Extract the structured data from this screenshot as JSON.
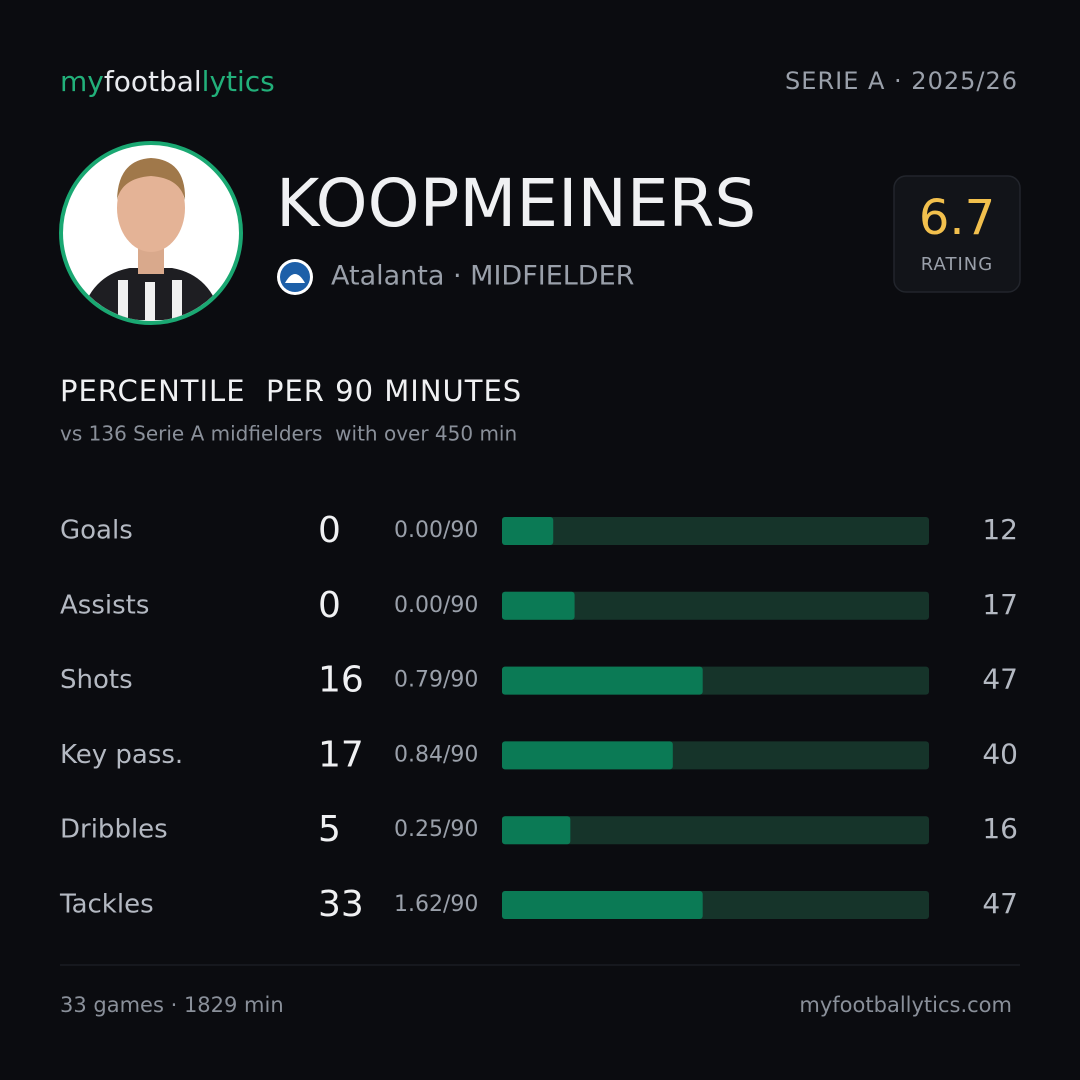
{
  "header": {
    "brand": [
      "my",
      "footbal",
      "lytics"
    ],
    "league": "SERIE A · 2025/26"
  },
  "player": {
    "name": "KOOPMEINERS",
    "club_role": "Atalanta · MIDFIELDER",
    "rating": "6.7",
    "rating_label": "RATING"
  },
  "stats": {
    "title": "PERCENTILE  PER 90 MINUTES",
    "subtitle": "vs 136 Serie A midfielders  with over 450 min",
    "percentile_range": [
      0,
      100
    ],
    "bar_color": "#0b7a55",
    "track_color": "#16342a",
    "rows": [
      {
        "label": "Goals",
        "count": 0,
        "per90": "0.00/90",
        "percentile": 12
      },
      {
        "label": "Assists",
        "count": 0,
        "per90": "0.00/90",
        "percentile": 17
      },
      {
        "label": "Shots",
        "count": 16,
        "per90": "0.79/90",
        "percentile": 47
      },
      {
        "label": "Key pass.",
        "count": 17,
        "per90": "0.84/90",
        "percentile": 40
      },
      {
        "label": "Dribbles",
        "count": 5,
        "per90": "0.25/90",
        "percentile": 16
      },
      {
        "label": "Tackles",
        "count": 33,
        "per90": "1.62/90",
        "percentile": 47
      }
    ]
  },
  "footer": {
    "summary": "33 games · 1829 min",
    "site": "myfootballytics.com"
  }
}
